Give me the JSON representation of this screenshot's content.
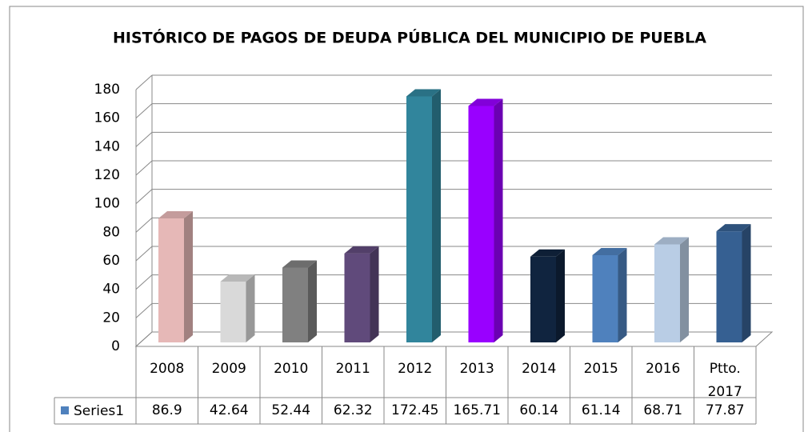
{
  "chart_data": {
    "type": "bar3d",
    "title": "HISTÓRICO DE PAGOS DE DEUDA PÚBLICA DEL MUNICIPIO DE PUEBLA",
    "categories": [
      "2008",
      "2009",
      "2010",
      "2011",
      "2012",
      "2013",
      "2014",
      "2015",
      "2016",
      "Ptto. 2017"
    ],
    "series": [
      {
        "name": "Series1",
        "color": "#4f81bd",
        "values": [
          86.9,
          42.64,
          52.44,
          62.32,
          172.45,
          165.71,
          60.14,
          61.14,
          68.71,
          77.87
        ],
        "colors": [
          "#e6b8b7",
          "#d9d9d9",
          "#808080",
          "#604a7b",
          "#31859c",
          "#9900ff",
          "#10243f",
          "#4f81bd",
          "#b9cde5",
          "#366092"
        ]
      }
    ],
    "ylim": [
      0,
      180
    ],
    "yticks": [
      0,
      20,
      40,
      60,
      80,
      100,
      120,
      140,
      160,
      180
    ],
    "grid": true,
    "data_table": true
  }
}
